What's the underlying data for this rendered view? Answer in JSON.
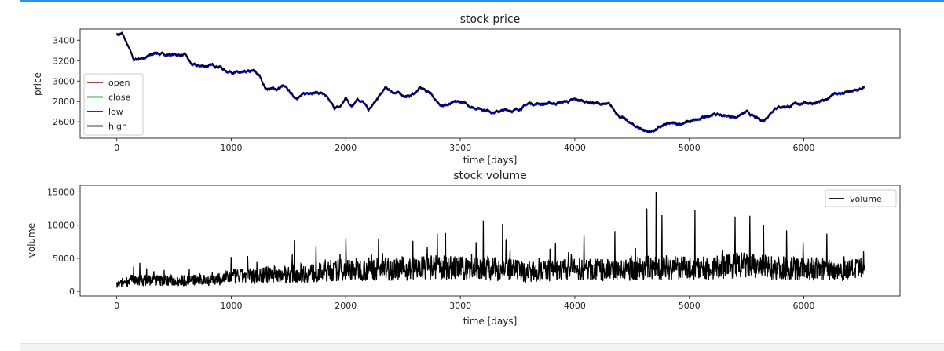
{
  "chart_data": [
    {
      "type": "line",
      "title": "stock price",
      "xlabel": "time [days]",
      "ylabel": "price",
      "xlim": [
        -320,
        6840
      ],
      "ylim": [
        2440,
        3510
      ],
      "xticks": [
        0,
        1000,
        2000,
        3000,
        4000,
        5000,
        6000
      ],
      "yticks": [
        2600,
        2800,
        3000,
        3200,
        3400
      ],
      "grid": false,
      "legend": "lower-left",
      "series": [
        {
          "name": "open",
          "color": "#ff0000"
        },
        {
          "name": "close",
          "color": "#008000"
        },
        {
          "name": "low",
          "color": "#0000ff"
        },
        {
          "name": "high",
          "color": "#000000"
        }
      ],
      "x": [
        0,
        50,
        100,
        150,
        200,
        300,
        350,
        400,
        500,
        600,
        650,
        700,
        800,
        900,
        950,
        1000,
        1100,
        1200,
        1250,
        1300,
        1400,
        1450,
        1500,
        1550,
        1650,
        1700,
        1800,
        1900,
        1950,
        2000,
        2050,
        2100,
        2150,
        2200,
        2250,
        2350,
        2400,
        2500,
        2550,
        2600,
        2650,
        2750,
        2800,
        2900,
        3000,
        3100,
        3200,
        3300,
        3400,
        3500,
        3600,
        3800,
        4000,
        4100,
        4300,
        4400,
        4500,
        4650,
        4800,
        4900,
        5000,
        5100,
        5200,
        5300,
        5400,
        5500,
        5600,
        5650,
        5750,
        5900,
        6000,
        6100,
        6200,
        6250,
        6350,
        6450,
        6530
      ],
      "price": [
        3460,
        3460,
        3330,
        3200,
        3220,
        3250,
        3280,
        3260,
        3260,
        3250,
        3160,
        3140,
        3150,
        3150,
        3100,
        3100,
        3070,
        3090,
        3040,
        2930,
        2920,
        2950,
        2900,
        2840,
        2870,
        2900,
        2880,
        2730,
        2740,
        2830,
        2750,
        2840,
        2800,
        2710,
        2780,
        2930,
        2900,
        2860,
        2850,
        2880,
        2930,
        2880,
        2780,
        2770,
        2790,
        2750,
        2730,
        2700,
        2710,
        2720,
        2780,
        2780,
        2810,
        2800,
        2760,
        2650,
        2570,
        2500,
        2570,
        2580,
        2600,
        2620,
        2680,
        2660,
        2650,
        2690,
        2620,
        2610,
        2750,
        2760,
        2790,
        2790,
        2800,
        2880,
        2880,
        2900,
        2930
      ]
    },
    {
      "type": "line",
      "title": "stock volume",
      "xlabel": "time [days]",
      "ylabel": "volume",
      "xlim": [
        -320,
        6840
      ],
      "ylim": [
        -700,
        16000
      ],
      "xticks": [
        0,
        1000,
        2000,
        3000,
        4000,
        5000,
        6000
      ],
      "yticks": [
        0,
        5000,
        10000,
        15000
      ],
      "grid": false,
      "legend": "upper-right",
      "series": [
        {
          "name": "volume",
          "color": "#000000"
        }
      ],
      "x": [
        0,
        100,
        300,
        500,
        700,
        900,
        1000,
        1200,
        1400,
        1600,
        1800,
        2000,
        2200,
        2400,
        2600,
        2800,
        3000,
        3200,
        3400,
        3600,
        3800,
        4000,
        4200,
        4400,
        4600,
        4800,
        5000,
        5200,
        5400,
        5600,
        5800,
        6000,
        6200,
        6400,
        6530
      ],
      "volume_typical": [
        1000,
        1700,
        1800,
        1700,
        1800,
        1900,
        2300,
        2500,
        2700,
        2900,
        3000,
        3500,
        3500,
        3600,
        3600,
        3800,
        3700,
        3600,
        3500,
        3000,
        3300,
        3500,
        3400,
        3300,
        3800,
        3800,
        3600,
        3700,
        4200,
        3900,
        3700,
        3600,
        3500,
        3400,
        3500
      ],
      "peaks": [
        [
          200,
          4300
        ],
        [
          1000,
          5200
        ],
        [
          1550,
          7700
        ],
        [
          2000,
          8000
        ],
        [
          2800,
          8700
        ],
        [
          2870,
          8800
        ],
        [
          3200,
          10700
        ],
        [
          3370,
          10200
        ],
        [
          3830,
          7300
        ],
        [
          4080,
          8500
        ],
        [
          4350,
          9100
        ],
        [
          4630,
          12500
        ],
        [
          4710,
          15000
        ],
        [
          4760,
          11500
        ],
        [
          5050,
          12300
        ],
        [
          5400,
          11300
        ],
        [
          5530,
          11400
        ],
        [
          5650,
          10000
        ],
        [
          5850,
          9200
        ],
        [
          6200,
          8700
        ]
      ]
    }
  ]
}
